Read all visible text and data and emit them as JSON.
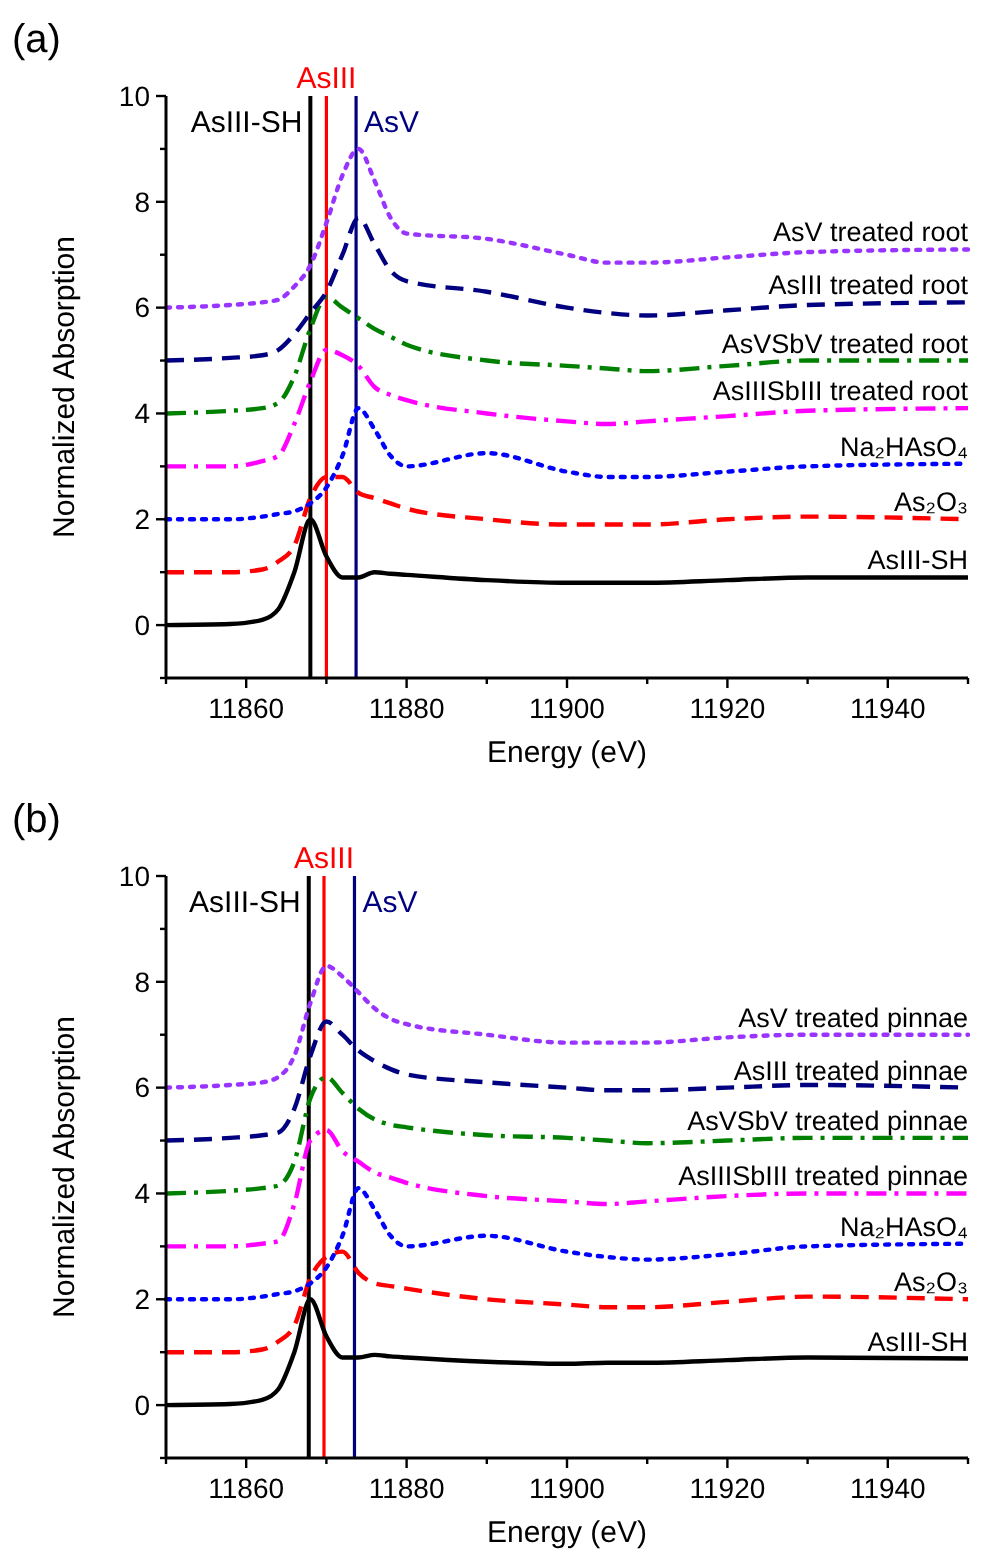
{
  "chart_data": [
    {
      "type": "line",
      "title": "(a)",
      "xlabel": "Energy (eV)",
      "ylabel": "Normalized Absorption",
      "xlim": [
        11850,
        11950
      ],
      "ylim": [
        -1,
        10
      ],
      "xticks": [
        {
          "value": 11850,
          "label": null
        },
        11860,
        {
          "value": 11870,
          "label": null
        },
        11880,
        {
          "value": 11890,
          "label": null
        },
        11900,
        {
          "value": 11910,
          "label": null
        },
        11920,
        {
          "value": 11930,
          "label": null
        },
        11940,
        {
          "value": 11950,
          "label": null
        }
      ],
      "yticks": [
        {
          "value": -1,
          "label": null
        },
        0,
        {
          "value": 1,
          "label": null
        },
        2,
        {
          "value": 3,
          "label": null
        },
        4,
        {
          "value": 5,
          "label": null
        },
        6,
        {
          "value": 7,
          "label": null
        },
        8,
        {
          "value": 9,
          "label": null
        },
        10
      ],
      "x": [
        11850,
        11858,
        11862,
        11864,
        11866,
        11868,
        11870,
        11872,
        11874,
        11876,
        11878,
        11880,
        11890,
        11900,
        11905,
        11910,
        11920,
        11930,
        11950
      ],
      "series": [
        {
          "name": "AsIII-SH",
          "color": "#000000",
          "line_style": "solid",
          "values": [
            0,
            0.02,
            0.1,
            0.3,
            1.0,
            2.0,
            1.3,
            0.9,
            0.9,
            1.0,
            0.97,
            0.95,
            0.85,
            0.8,
            0.8,
            0.8,
            0.85,
            0.9,
            0.9
          ]
        },
        {
          "name": "As₂O₃",
          "color": "#ff0000",
          "line_style": "dashed",
          "values": [
            1.0,
            1.0,
            1.05,
            1.2,
            1.5,
            2.4,
            2.8,
            2.8,
            2.5,
            2.4,
            2.3,
            2.2,
            2.0,
            1.9,
            1.9,
            1.9,
            2.0,
            2.05,
            2.0
          ]
        },
        {
          "name": "Na₂HAsO₄",
          "color": "#0000ff",
          "line_style": "dotted",
          "values": [
            2.0,
            2.0,
            2.05,
            2.1,
            2.15,
            2.3,
            2.6,
            3.2,
            4.1,
            3.7,
            3.2,
            3.0,
            3.25,
            2.9,
            2.8,
            2.8,
            2.9,
            3.0,
            3.05
          ]
        },
        {
          "name": "AsIIISbIII treated root",
          "color": "#ff00ff",
          "line_style": "dashdot",
          "values": [
            3.0,
            3.0,
            3.1,
            3.2,
            3.8,
            4.6,
            5.2,
            5.1,
            4.9,
            4.5,
            4.35,
            4.25,
            4.0,
            3.85,
            3.8,
            3.85,
            3.95,
            4.05,
            4.1
          ]
        },
        {
          "name": "AsVSbV treated root",
          "color": "#008000",
          "line_style": "dashdot",
          "values": [
            4.0,
            4.05,
            4.1,
            4.2,
            4.7,
            5.6,
            6.2,
            6.0,
            5.8,
            5.6,
            5.45,
            5.3,
            5.0,
            4.9,
            4.85,
            4.8,
            4.9,
            5.0,
            5.0
          ]
        },
        {
          "name": "AsIII treated root",
          "color": "#000080",
          "line_style": "dashed",
          "values": [
            5.0,
            5.05,
            5.1,
            5.2,
            5.5,
            5.9,
            6.3,
            7.0,
            7.7,
            7.2,
            6.7,
            6.5,
            6.3,
            6.0,
            5.9,
            5.85,
            5.95,
            6.05,
            6.1
          ]
        },
        {
          "name": "AsV treated root",
          "color": "#9933ff",
          "line_style": "dotted",
          "values": [
            6.0,
            6.05,
            6.1,
            6.15,
            6.4,
            6.8,
            7.6,
            8.5,
            9.0,
            8.4,
            7.7,
            7.4,
            7.3,
            7.0,
            6.85,
            6.85,
            6.95,
            7.05,
            7.1
          ]
        }
      ],
      "ref_lines": [
        {
          "axis": "x",
          "value": 11868,
          "label": "AsIII-SH",
          "color": "#000000"
        },
        {
          "axis": "x",
          "value": 11870,
          "label": "AsIII",
          "color": "#ff0000"
        },
        {
          "axis": "x",
          "value": 11873.7,
          "label": "AsV",
          "color": "#000080"
        }
      ]
    },
    {
      "type": "line",
      "title": "(b)",
      "xlabel": "Energy (eV)",
      "ylabel": "Normalized Absorption",
      "xlim": [
        11850,
        11950
      ],
      "ylim": [
        -1,
        10
      ],
      "xticks": [
        {
          "value": 11850,
          "label": null
        },
        11860,
        {
          "value": 11870,
          "label": null
        },
        11880,
        {
          "value": 11890,
          "label": null
        },
        11900,
        {
          "value": 11910,
          "label": null
        },
        11920,
        {
          "value": 11930,
          "label": null
        },
        11940,
        {
          "value": 11950,
          "label": null
        }
      ],
      "yticks": [
        {
          "value": -1,
          "label": null
        },
        0,
        {
          "value": 1,
          "label": null
        },
        2,
        {
          "value": 3,
          "label": null
        },
        4,
        {
          "value": 5,
          "label": null
        },
        6,
        {
          "value": 7,
          "label": null
        },
        8,
        {
          "value": 9,
          "label": null
        },
        10
      ],
      "x": [
        11850,
        11858,
        11862,
        11864,
        11866,
        11868,
        11870,
        11872,
        11874,
        11876,
        11878,
        11880,
        11890,
        11900,
        11905,
        11910,
        11920,
        11930,
        11950
      ],
      "series": [
        {
          "name": "AsIII-SH",
          "color": "#000000",
          "line_style": "solid",
          "values": [
            0,
            0.02,
            0.1,
            0.3,
            1.0,
            2.0,
            1.3,
            0.9,
            0.9,
            0.95,
            0.92,
            0.9,
            0.82,
            0.78,
            0.8,
            0.8,
            0.85,
            0.9,
            0.88
          ]
        },
        {
          "name": "As₂O₃",
          "color": "#ff0000",
          "line_style": "dashed",
          "values": [
            1.0,
            1.0,
            1.05,
            1.2,
            1.5,
            2.4,
            2.8,
            2.9,
            2.5,
            2.3,
            2.25,
            2.2,
            2.0,
            1.9,
            1.85,
            1.85,
            1.95,
            2.05,
            2.0
          ]
        },
        {
          "name": "Na₂HAsO₄",
          "color": "#0000ff",
          "line_style": "dotted",
          "values": [
            2.0,
            2.0,
            2.05,
            2.1,
            2.15,
            2.3,
            2.6,
            3.2,
            4.1,
            3.7,
            3.2,
            3.0,
            3.2,
            2.9,
            2.8,
            2.75,
            2.85,
            3.0,
            3.05
          ]
        },
        {
          "name": "AsIIISbIII treated pinnae",
          "color": "#ff00ff",
          "line_style": "dashdot",
          "values": [
            3.0,
            3.0,
            3.05,
            3.1,
            3.8,
            5.0,
            5.2,
            4.8,
            4.6,
            4.4,
            4.3,
            4.2,
            3.95,
            3.85,
            3.8,
            3.85,
            3.95,
            4.0,
            4.0
          ]
        },
        {
          "name": "AsVSbV treated pinnae",
          "color": "#008000",
          "line_style": "dashdot",
          "values": [
            4.0,
            4.05,
            4.1,
            4.15,
            4.6,
            5.8,
            6.2,
            5.9,
            5.6,
            5.4,
            5.3,
            5.25,
            5.1,
            5.05,
            5.0,
            4.95,
            5.0,
            5.05,
            5.05
          ]
        },
        {
          "name": "AsIII treated pinnae",
          "color": "#000080",
          "line_style": "dashed",
          "values": [
            5.0,
            5.05,
            5.1,
            5.15,
            5.6,
            6.6,
            7.25,
            7.0,
            6.7,
            6.5,
            6.35,
            6.25,
            6.1,
            6.0,
            5.95,
            5.95,
            6.0,
            6.05,
            6.0
          ]
        },
        {
          "name": "AsV treated pinnae",
          "color": "#9933ff",
          "line_style": "dotted",
          "values": [
            6.0,
            6.05,
            6.1,
            6.2,
            6.6,
            7.6,
            8.3,
            8.1,
            7.8,
            7.5,
            7.3,
            7.2,
            7.0,
            6.85,
            6.85,
            6.85,
            6.95,
            7.0,
            7.0
          ]
        }
      ],
      "ref_lines": [
        {
          "axis": "x",
          "value": 11867.8,
          "label": "AsIII-SH",
          "color": "#000000"
        },
        {
          "axis": "x",
          "value": 11869.7,
          "label": "AsIII",
          "color": "#ff0000"
        },
        {
          "axis": "x",
          "value": 11873.5,
          "label": "AsV",
          "color": "#000080"
        }
      ]
    }
  ]
}
